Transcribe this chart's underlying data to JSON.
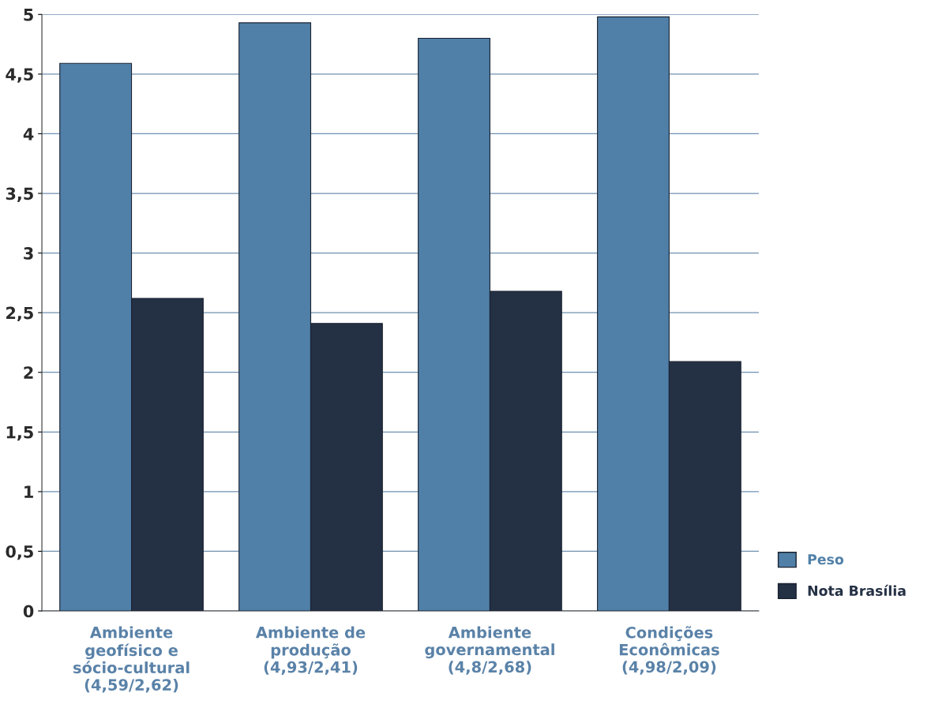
{
  "chart_data": {
    "type": "bar",
    "categories": [
      "Ambiente\ngeofísico e\nsócio-cultural\n(4,59/2,62)",
      "Ambiente de\nprodução\n(4,93/2,41)",
      "Ambiente\ngovernamental\n(4,8/2,68)",
      "Condições\nEconômicas\n(4,98/2,09)"
    ],
    "series": [
      {
        "name": "Peso",
        "color": "#5080a8",
        "values": [
          4.59,
          4.93,
          4.8,
          4.98
        ]
      },
      {
        "name": "Nota Brasília",
        "color": "#243044",
        "values": [
          2.62,
          2.41,
          2.68,
          2.09
        ]
      }
    ],
    "ylim": [
      0,
      5
    ],
    "yticks": [
      0,
      {
        "value": 0.5,
        "label": "0,5"
      },
      1,
      {
        "value": 1.5,
        "label": "1,5"
      },
      2,
      {
        "value": 2.5,
        "label": "2,5"
      },
      3,
      {
        "value": 3.5,
        "label": "3,5"
      },
      4,
      {
        "value": 4.5,
        "label": "4,5"
      },
      5
    ],
    "grid": "y",
    "legend": "bottom right"
  }
}
